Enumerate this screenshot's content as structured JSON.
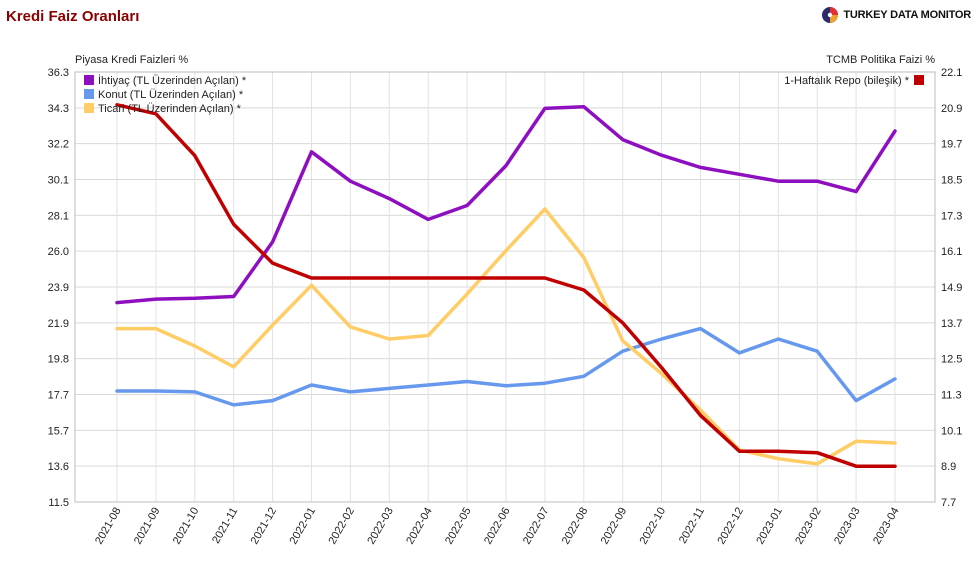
{
  "header": {
    "title": "Kredi Faiz Oranları",
    "brand": "TURKEY DATA MONITOR"
  },
  "chart_data": {
    "type": "line",
    "ylabel_left": "Piyasa Kredi Faizleri %",
    "ylabel_right": "TCMB Politika Faizi %",
    "categories": [
      "2021-08",
      "2021-09",
      "2021-10",
      "2021-11",
      "2021-12",
      "2022-01",
      "2022-02",
      "2022-03",
      "2022-04",
      "2022-05",
      "2022-06",
      "2022-07",
      "2022-08",
      "2022-09",
      "2022-10",
      "2022-11",
      "2022-12",
      "2023-01",
      "2023-02",
      "2023-03",
      "2023-04"
    ],
    "ylim_left": [
      11.5,
      36.3
    ],
    "yticks_left": [
      "11.5",
      "13.6",
      "15.7",
      "17.7",
      "19.8",
      "21.9",
      "23.9",
      "26.0",
      "28.1",
      "30.1",
      "32.2",
      "34.3",
      "36.3"
    ],
    "ylim_right": [
      7.7,
      22.1
    ],
    "yticks_right": [
      "7.7",
      "8.9",
      "10.1",
      "11.3",
      "12.5",
      "13.7",
      "14.9",
      "16.1",
      "17.3",
      "18.5",
      "19.7",
      "20.9",
      "22.1"
    ],
    "grid": true,
    "legend_left": "top-left",
    "legend_right": "top-right",
    "series": [
      {
        "name": "İhtiyaç (TL Üzerinden Açılan) *",
        "axis": "left",
        "color": "#8e0fbf",
        "values": [
          23.0,
          23.2,
          23.25,
          23.35,
          26.5,
          31.7,
          30.0,
          29.0,
          27.8,
          28.6,
          30.9,
          34.2,
          34.3,
          32.4,
          31.5,
          30.8,
          30.4,
          30.0,
          30.0,
          29.4,
          32.9
        ]
      },
      {
        "name": "Konut (TL Üzerinden Açılan) *",
        "axis": "left",
        "color": "#6699ee",
        "values": [
          17.9,
          17.9,
          17.85,
          17.1,
          17.35,
          18.25,
          17.85,
          18.05,
          18.25,
          18.45,
          18.2,
          18.35,
          18.75,
          20.2,
          20.9,
          21.5,
          20.1,
          20.9,
          20.2,
          17.35,
          18.6
        ]
      },
      {
        "name": "Ticari (TL Üzerinden Açılan) *",
        "axis": "left",
        "color": "#ffcc66",
        "values": [
          21.5,
          21.5,
          20.5,
          19.3,
          21.7,
          24.0,
          21.6,
          20.9,
          21.1,
          23.5,
          26.0,
          28.4,
          25.6,
          20.8,
          18.9,
          16.8,
          14.5,
          14.0,
          13.7,
          15.0,
          14.9
        ]
      },
      {
        "name": "1-Haftalık Repo (bileşik) *",
        "axis": "right",
        "color": "#c00000",
        "values": [
          21.0,
          20.7,
          19.3,
          17.0,
          15.7,
          15.2,
          15.2,
          15.2,
          15.2,
          15.2,
          15.2,
          15.2,
          14.8,
          13.7,
          12.2,
          10.6,
          9.4,
          9.4,
          9.35,
          8.9,
          8.9
        ]
      }
    ]
  }
}
